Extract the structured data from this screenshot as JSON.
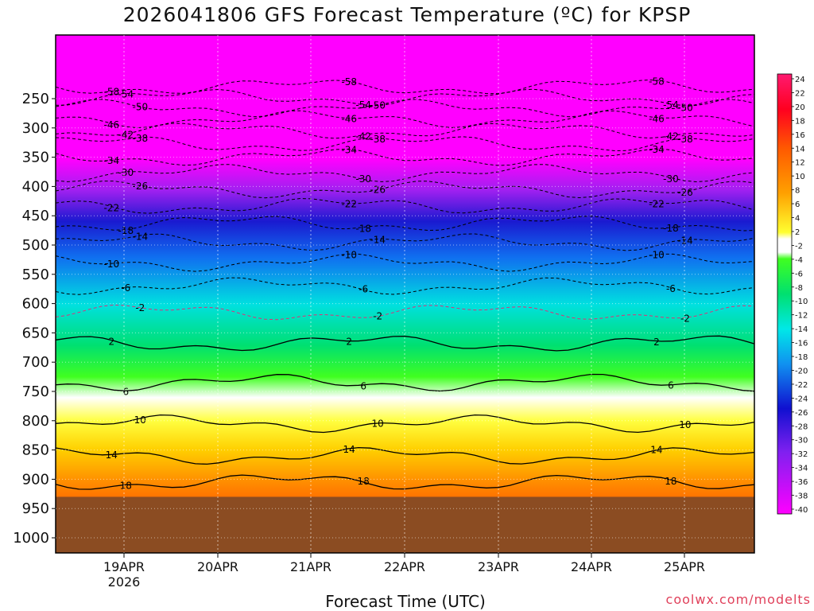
{
  "title": "2026041806 GFS Forecast Temperature (ºC) for KPSP",
  "xlabel": "Forecast Time (UTC)",
  "credit": "coolwx.com/modelts",
  "colors": {
    "ground": "#8b4c22",
    "freezing_line": "#e0307a"
  },
  "chart_data": {
    "type": "heatmap",
    "title": "2026041806 GFS Forecast Temperature (ºC) for KPSP",
    "xlabel": "Forecast Time (UTC)",
    "ylabel": "",
    "y_ticks": [
      "250",
      "300",
      "350",
      "400",
      "450",
      "500",
      "550",
      "600",
      "650",
      "700",
      "750",
      "800",
      "850",
      "900",
      "950",
      "1000"
    ],
    "x_ticks": [
      "19APR",
      "20APR",
      "21APR",
      "22APR",
      "23APR",
      "24APR",
      "25APR"
    ],
    "x_year_label": "2026",
    "colorbar_ticks": [
      "24",
      "22",
      "20",
      "18",
      "16",
      "14",
      "12",
      "10",
      "8",
      "6",
      "4",
      "2",
      "-2",
      "-4",
      "-6",
      "-8",
      "-10",
      "-12",
      "-14",
      "-16",
      "-18",
      "-20",
      "-22",
      "-24",
      "-26",
      "-28",
      "-30",
      "-32",
      "-34",
      "-36",
      "-38",
      "-40"
    ],
    "contour_labels": [
      "-58",
      "-54",
      "-50",
      "-46",
      "-42",
      "-38",
      "-34",
      "-30",
      "-26",
      "-22",
      "-18",
      "-14",
      "-10",
      "-6",
      "-2",
      "2",
      "6",
      "10",
      "14",
      "18"
    ],
    "isotherms": [
      {
        "value": -58,
        "pressure": 230
      },
      {
        "value": -54,
        "pressure": 248
      },
      {
        "value": -50,
        "pressure": 266
      },
      {
        "value": -46,
        "pressure": 285
      },
      {
        "value": -42,
        "pressure": 305
      },
      {
        "value": -38,
        "pressure": 327
      },
      {
        "value": -34,
        "pressure": 350
      },
      {
        "value": -30,
        "pressure": 377
      },
      {
        "value": -26,
        "pressure": 405
      },
      {
        "value": -22,
        "pressure": 433
      },
      {
        "value": -18,
        "pressure": 463
      },
      {
        "value": -14,
        "pressure": 495
      },
      {
        "value": -10,
        "pressure": 530
      },
      {
        "value": -6,
        "pressure": 570
      },
      {
        "value": -2,
        "pressure": 615
      },
      {
        "value": 2,
        "pressure": 668
      },
      {
        "value": 6,
        "pressure": 735
      },
      {
        "value": 10,
        "pressure": 805
      },
      {
        "value": 14,
        "pressure": 860
      },
      {
        "value": 18,
        "pressure": 905
      }
    ],
    "ground_pressure": 930,
    "grid": true
  }
}
